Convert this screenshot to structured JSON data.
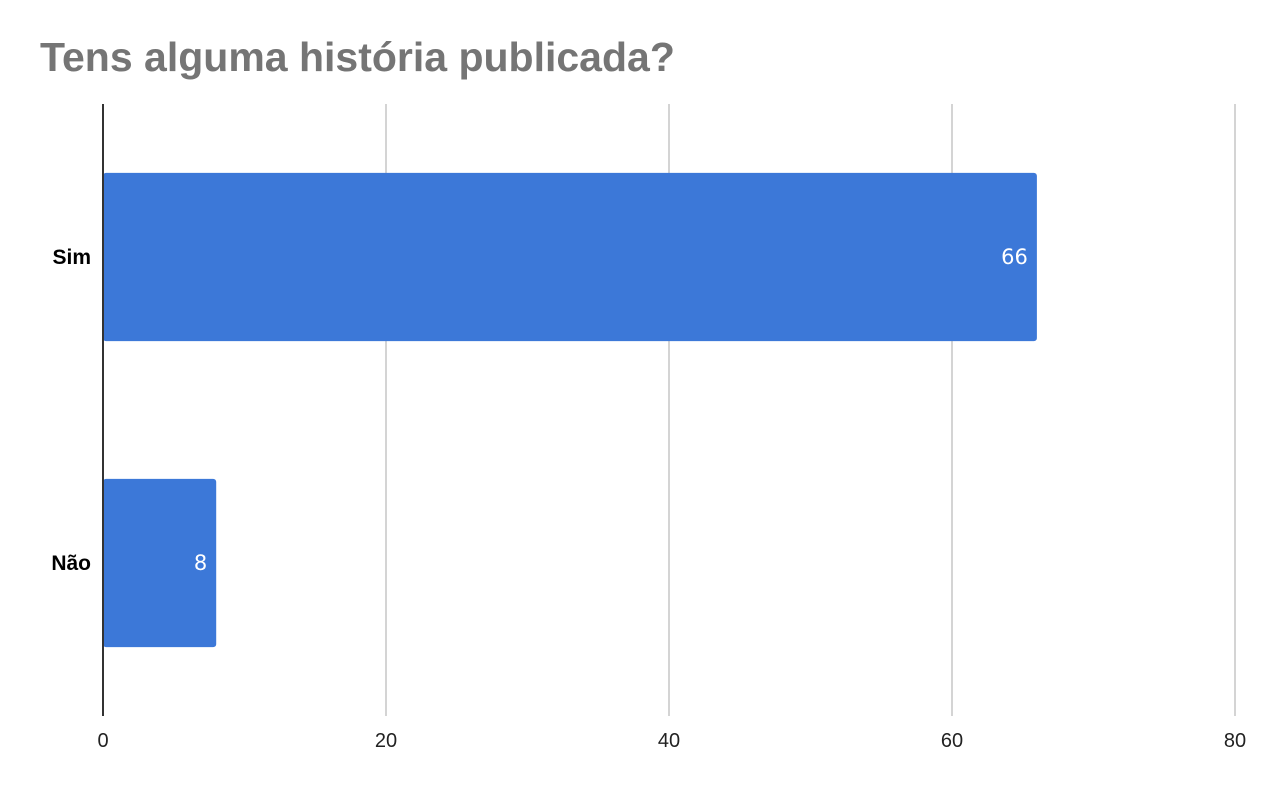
{
  "chart_data": {
    "type": "bar",
    "orientation": "horizontal",
    "title": "Tens alguma história publicada?",
    "categories": [
      "Sim",
      "Não"
    ],
    "values": [
      66,
      8
    ],
    "data_labels": [
      "66",
      "8"
    ],
    "xlim": [
      0,
      80
    ],
    "x_ticks": [
      0,
      20,
      40,
      60,
      80
    ],
    "x_tick_labels": [
      "0",
      "20",
      "40",
      "60",
      "80"
    ],
    "grid": true,
    "bar_color": "#3c78d8",
    "grid_color": "#c6c6c6",
    "axis_color": "#333333",
    "title_color": "#757575"
  }
}
